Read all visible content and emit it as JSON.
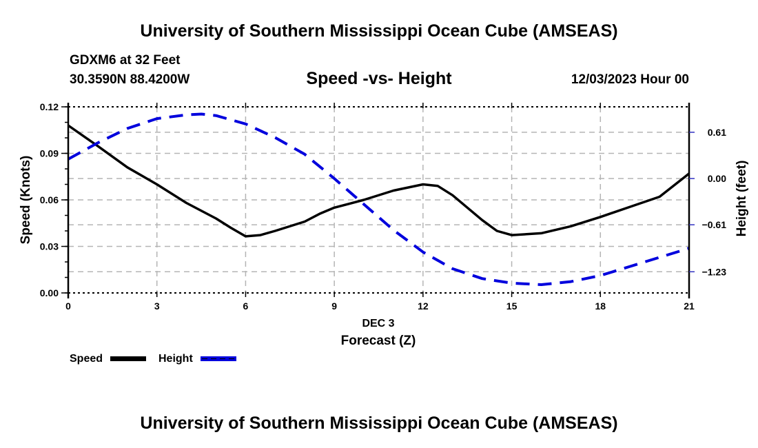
{
  "header": {
    "title": "University of Southern Mississippi Ocean Cube (AMSEAS)",
    "station": "GDXM6 at 32 Feet",
    "coordinates": "30.3590N  88.4200W",
    "subtitle": "Speed -vs- Height",
    "datetime": "12/03/2023 Hour 00"
  },
  "footer": {
    "title": "University of Southern Mississippi Ocean Cube (AMSEAS)"
  },
  "chart_data": {
    "type": "line",
    "title": "Speed -vs- Height",
    "xlabel": "Forecast (Z)",
    "xsublabel": "DEC 3",
    "ylabel": "Speed (Knots)",
    "y2label": "Height (feet)",
    "xlim": [
      0,
      21
    ],
    "ylim": [
      0,
      0.12
    ],
    "y2lim": [
      -1.5,
      0.9
    ],
    "x_ticks": [
      0,
      3,
      6,
      9,
      12,
      15,
      18,
      21
    ],
    "x_tick_labels": [
      "0",
      "3",
      "6",
      "9",
      "12",
      "15",
      "18",
      "21"
    ],
    "y_ticks": [
      0.0,
      0.03,
      0.06,
      0.09,
      0.12
    ],
    "y_tick_labels": [
      "0.00",
      "0.03",
      "0.06",
      "0.09",
      "0.12"
    ],
    "y2_ticks": [
      0.61,
      0.0,
      -0.61,
      -1.23
    ],
    "y2_tick_labels": [
      "0.61",
      "0.00",
      "−0.61",
      "−1.23"
    ],
    "grid": true,
    "legend_position": "bottom-left",
    "series": [
      {
        "name": "Speed",
        "axis": "left",
        "color": "#000000",
        "style": "solid",
        "x": [
          0,
          1,
          2,
          3,
          4,
          5,
          5.5,
          6,
          6.5,
          7,
          8,
          8.5,
          9,
          10,
          11,
          12,
          12.5,
          13,
          14,
          14.5,
          15,
          16,
          17,
          18,
          19,
          20,
          21
        ],
        "values": [
          0.108,
          0.0947,
          0.081,
          0.07,
          0.058,
          0.048,
          0.042,
          0.0365,
          0.0373,
          0.04,
          0.046,
          0.051,
          0.055,
          0.06,
          0.066,
          0.07,
          0.069,
          0.063,
          0.047,
          0.04,
          0.0373,
          0.0385,
          0.043,
          0.049,
          0.0555,
          0.062,
          0.077
        ]
      },
      {
        "name": "Height",
        "axis": "right",
        "color": "#0000dd",
        "style": "dashed",
        "x": [
          0,
          1,
          2,
          3,
          4,
          4.5,
          5,
          6,
          7,
          8,
          9,
          10,
          11,
          12,
          13,
          14,
          15,
          16,
          17,
          18,
          19,
          20,
          21
        ],
        "values": [
          0.255,
          0.47,
          0.66,
          0.79,
          0.84,
          0.85,
          0.83,
          0.72,
          0.54,
          0.32,
          0.0,
          -0.34,
          -0.68,
          -0.97,
          -1.19,
          -1.32,
          -1.38,
          -1.4,
          -1.36,
          -1.28,
          -1.16,
          -1.04,
          -0.92
        ]
      }
    ]
  }
}
